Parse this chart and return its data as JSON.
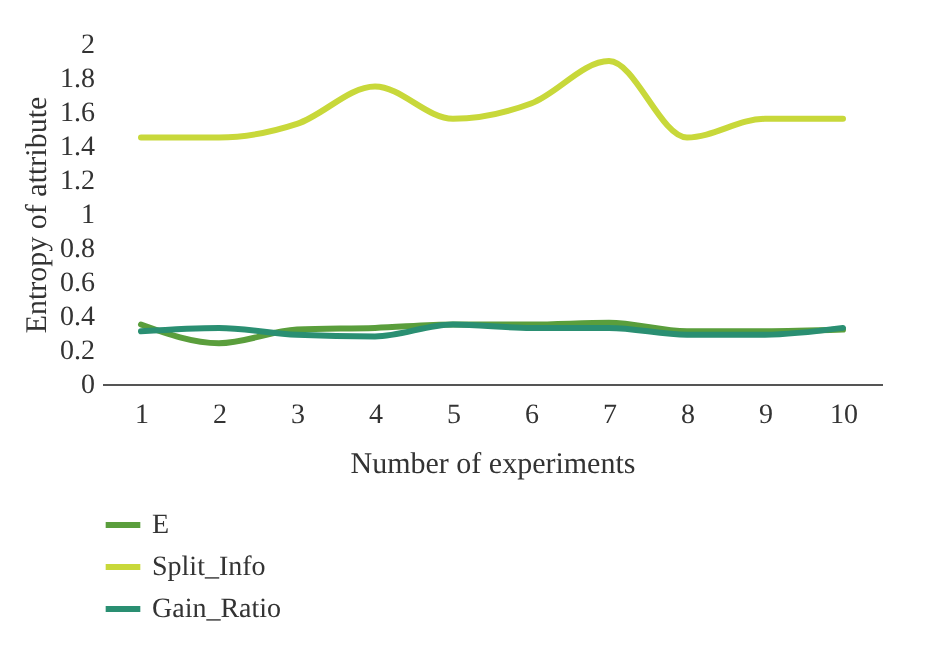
{
  "chart_data": {
    "type": "line",
    "xlabel": "Number of experiments",
    "ylabel": "Entropy of attribute",
    "categories": [
      "1",
      "2",
      "3",
      "4",
      "5",
      "6",
      "7",
      "8",
      "9",
      "10"
    ],
    "series": [
      {
        "name": "E",
        "color": "#5a9e3c",
        "values": [
          0.35,
          0.24,
          0.32,
          0.33,
          0.35,
          0.35,
          0.36,
          0.31,
          0.31,
          0.32
        ]
      },
      {
        "name": "Split_Info",
        "color": "#c8d83a",
        "values": [
          1.45,
          1.45,
          1.53,
          1.75,
          1.56,
          1.65,
          1.9,
          1.45,
          1.56,
          1.56
        ]
      },
      {
        "name": "Gain_Ratio",
        "color": "#2a8f72",
        "values": [
          0.31,
          0.33,
          0.29,
          0.28,
          0.35,
          0.33,
          0.33,
          0.29,
          0.29,
          0.33
        ]
      }
    ],
    "ylim": [
      0,
      2
    ],
    "yticks": [
      0,
      0.2,
      0.4,
      0.6,
      0.8,
      1,
      1.2,
      1.4,
      1.6,
      1.8,
      2
    ],
    "grid": false,
    "legend": "bottom left"
  }
}
